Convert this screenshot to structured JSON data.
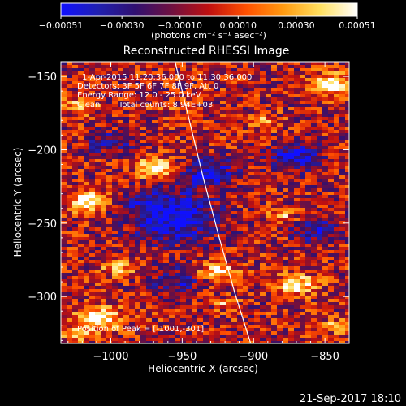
{
  "chart_data": {
    "type": "heatmap",
    "title": "Reconstructed RHESSI Image",
    "xlabel": "Heliocentric X (arcsec)",
    "ylabel": "Heliocentric Y (arcsec)",
    "xlim": [
      -1035,
      -833
    ],
    "ylim": [
      -332,
      -140
    ],
    "x_ticks": [
      -1000,
      -950,
      -900,
      -850
    ],
    "x_tick_labels": [
      "−1000",
      "−950",
      "−900",
      "−850"
    ],
    "y_ticks": [
      -150,
      -200,
      -250,
      -300
    ],
    "y_tick_labels": [
      "−150",
      "−200",
      "−250",
      "−300"
    ],
    "colorbar": {
      "min": -0.00051,
      "max": 0.00051,
      "ticks": [
        -0.00051,
        -0.0003,
        -0.0001,
        0.0001,
        0.0003,
        0.00051
      ],
      "tick_labels": [
        "−0.00051",
        "−0.00030",
        "−0.00010",
        "0.00010",
        "0.00030",
        "0.00051"
      ],
      "unit_label": "(photons cm⁻² s⁻¹ asec⁻²)",
      "colors": [
        "#1010ff",
        "#2020b0",
        "#301070",
        "#701040",
        "#c01010",
        "#ff5000",
        "#ff9a10",
        "#ffe060",
        "#ffffff"
      ]
    },
    "annotations": [
      "1-Apr-2015 11:20:36.000 to 11:30:36.000",
      "Detectors: 3F 5F 6F 7F 8F 9F, Att 0",
      "Energy Range: 12.0 - 25.0 keV",
      "Clean",
      "Total counts: 8.94E+03"
    ],
    "peak_label": "Position of Peak = [-1001,-301]",
    "limb_line": [
      [
        -955,
        -140
      ],
      [
        -945,
        -180
      ],
      [
        -935,
        -220
      ],
      [
        -924,
        -260
      ],
      [
        -913,
        -298
      ],
      [
        -902,
        -332
      ]
    ],
    "hot_spots": [
      {
        "x": -1015,
        "y": -235,
        "r": 10,
        "level": 0.9
      },
      {
        "x": -970,
        "y": -213,
        "r": 8,
        "level": 1.0
      },
      {
        "x": -1008,
        "y": -315,
        "r": 10,
        "level": 0.95
      },
      {
        "x": -995,
        "y": -280,
        "r": 8,
        "level": 0.6
      },
      {
        "x": -925,
        "y": -283,
        "r": 8,
        "level": 0.8
      },
      {
        "x": -870,
        "y": -292,
        "r": 9,
        "level": 0.85
      },
      {
        "x": -845,
        "y": -155,
        "r": 9,
        "level": 0.9
      },
      {
        "x": -893,
        "y": -180,
        "r": 7,
        "level": 0.5
      },
      {
        "x": -843,
        "y": -320,
        "r": 6,
        "level": 0.5
      },
      {
        "x": -1022,
        "y": -170,
        "r": 8,
        "level": 0.5
      },
      {
        "x": -960,
        "y": -170,
        "r": 6,
        "level": 0.2
      },
      {
        "x": -985,
        "y": -250,
        "r": 6,
        "level": 0.4
      },
      {
        "x": -920,
        "y": -305,
        "r": 5,
        "level": 0.5
      },
      {
        "x": -880,
        "y": -245,
        "r": 6,
        "level": 0.55
      },
      {
        "x": -1025,
        "y": -325,
        "r": 7,
        "level": 0.5
      }
    ],
    "cold_spots": [
      {
        "x": -960,
        "y": -245,
        "r": 22,
        "level": -0.9
      },
      {
        "x": -930,
        "y": -215,
        "r": 12,
        "level": -0.7
      },
      {
        "x": -870,
        "y": -205,
        "r": 12,
        "level": -0.7
      },
      {
        "x": -855,
        "y": -255,
        "r": 10,
        "level": -0.6
      },
      {
        "x": -955,
        "y": -290,
        "r": 12,
        "level": -0.5
      },
      {
        "x": -1000,
        "y": -195,
        "r": 10,
        "level": -0.5
      }
    ]
  },
  "footer": {
    "date": "21-Sep-2017 18:10"
  }
}
